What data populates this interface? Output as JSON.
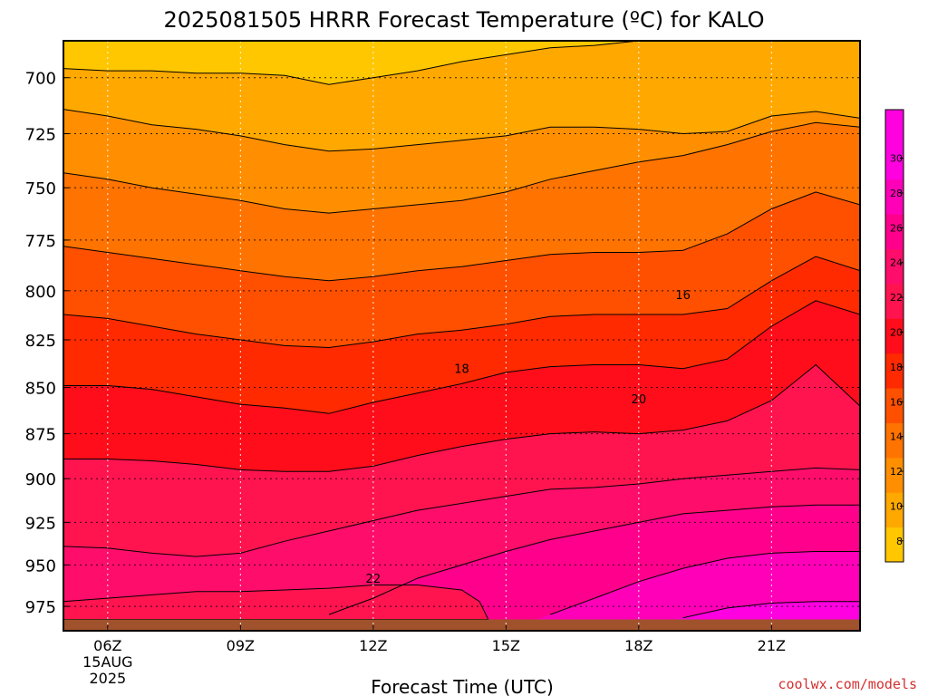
{
  "chart_data": {
    "type": "filled-contour",
    "title": "2025081505 HRRR Forecast Temperature (ºC) for KALO",
    "xlabel": "Forecast Time (UTC)",
    "ylabel": "",
    "x_ticks": [
      "06Z",
      "09Z",
      "12Z",
      "15Z",
      "18Z",
      "21Z"
    ],
    "x_date": [
      "15AUG",
      "2025"
    ],
    "x_hours": [
      5,
      6,
      7,
      8,
      9,
      10,
      11,
      12,
      13,
      14,
      15,
      16,
      17,
      18,
      19,
      20,
      21,
      22,
      23
    ],
    "xlim_hours": [
      5,
      23
    ],
    "y_ticks": [
      700,
      725,
      750,
      775,
      800,
      825,
      850,
      875,
      900,
      925,
      950,
      975
    ],
    "ylim_hpa": [
      684,
      990
    ],
    "surface_hpa": 983,
    "y_scale": "log-pressure (decreasing upward)",
    "grid": true,
    "colorbar_ticks": [
      8,
      10,
      12,
      14,
      16,
      18,
      20,
      22,
      24,
      26,
      28,
      30
    ],
    "contour_labels": [
      {
        "value": "16",
        "x_hours": 19.0,
        "p": 802
      },
      {
        "value": "18",
        "x_hours": 14.0,
        "p": 840
      },
      {
        "value": "20",
        "x_hours": 18.0,
        "p": 856
      },
      {
        "value": "22",
        "x_hours": 12.0,
        "p": 958
      }
    ],
    "isotherms": [
      {
        "level": 10,
        "p": [
          696,
          697,
          697,
          698,
          698,
          699,
          703,
          700,
          697,
          693,
          690,
          687,
          686,
          684,
          684,
          684,
          684,
          684,
          684
        ]
      },
      {
        "level": 12,
        "p": [
          714,
          717,
          721,
          723,
          726,
          730,
          733,
          732,
          730,
          728,
          726,
          722,
          722,
          723,
          725,
          724,
          717,
          715,
          718
        ]
      },
      {
        "level": 14,
        "p": [
          743,
          746,
          750,
          753,
          756,
          760,
          762,
          760,
          758,
          756,
          752,
          746,
          742,
          738,
          735,
          730,
          724,
          720,
          722
        ]
      },
      {
        "level": 16,
        "p": [
          778,
          781,
          784,
          787,
          790,
          793,
          795,
          793,
          790,
          788,
          785,
          782,
          781,
          781,
          780,
          772,
          760,
          752,
          758
        ]
      },
      {
        "level": 18,
        "p": [
          812,
          814,
          818,
          822,
          825,
          828,
          829,
          826,
          822,
          820,
          817,
          813,
          812,
          812,
          812,
          809,
          795,
          783,
          790
        ]
      },
      {
        "level": 20,
        "p": [
          849,
          849,
          851,
          855,
          859,
          861,
          864,
          858,
          853,
          848,
          842,
          839,
          838,
          838,
          840,
          835,
          818,
          805,
          812
        ]
      },
      {
        "level": 22,
        "p": [
          889,
          889,
          890,
          892,
          895,
          896,
          896,
          893,
          887,
          882,
          878,
          875,
          874,
          875,
          873,
          868,
          857,
          838,
          860
        ]
      },
      {
        "level": 24,
        "p": [
          939,
          940,
          943,
          945,
          943,
          936,
          930,
          924,
          918,
          914,
          910,
          906,
          905,
          903,
          900,
          898,
          896,
          894,
          895
        ]
      },
      {
        "level": 26,
        "p": [
          995,
          995,
          995,
          995,
          995,
          990,
          980,
          970,
          958,
          950,
          942,
          935,
          930,
          925,
          920,
          918,
          916,
          915,
          915
        ]
      },
      {
        "level": 28,
        "p": [
          995,
          995,
          995,
          995,
          995,
          995,
          995,
          995,
          995,
          995,
          990,
          980,
          970,
          960,
          952,
          946,
          943,
          942,
          942
        ]
      },
      {
        "level": 30,
        "p": [
          995,
          995,
          995,
          995,
          995,
          995,
          995,
          995,
          995,
          995,
          995,
          995,
          995,
          990,
          982,
          976,
          973,
          972,
          972
        ]
      }
    ],
    "warm_pocket_22": {
      "x_hours": [
        5,
        6,
        7,
        8,
        9,
        10,
        11,
        12,
        13,
        14,
        14.4,
        14.6
      ],
      "p_top": [
        972,
        970,
        968,
        966,
        966,
        965,
        964,
        962,
        962,
        965,
        972,
        983
      ],
      "p_bottom": [
        983,
        983,
        983,
        983,
        983,
        983,
        983,
        983,
        983,
        983,
        983,
        983
      ]
    },
    "colors": {
      "8": "#ffc700",
      "10": "#ffa800",
      "12": "#ff8f00",
      "14": "#ff7300",
      "16": "#ff5000",
      "18": "#ff2a00",
      "20": "#ff0d1a",
      "22": "#ff1450",
      "24": "#ff0d6a",
      "26": "#ff008c",
      "28": "#ff00b8",
      "30": "#ff00e0",
      "ground": "#a0522d",
      "credit": "#d43030"
    },
    "credit": "coolwx.com/models"
  }
}
